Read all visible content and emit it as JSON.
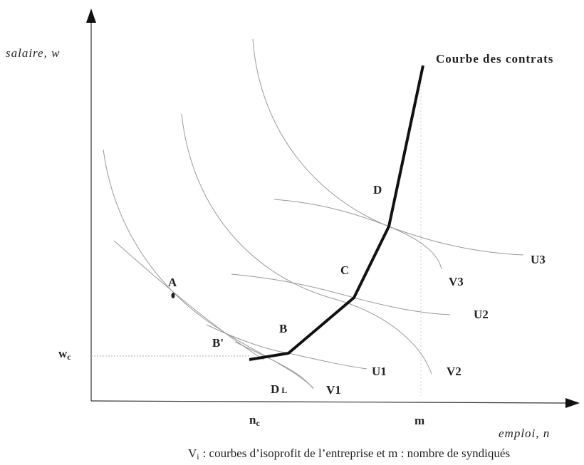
{
  "y_axis_label": "salaire, w",
  "x_axis_label": "emploi, n",
  "contract_curve_label": "Courbe des contrats",
  "points": {
    "D": "D",
    "C": "C",
    "B": "B",
    "A": "A",
    "B_prime": "B'",
    "D_L": {
      "main": "D",
      "sub": "L"
    }
  },
  "wage": {
    "main": "w",
    "sub": "c"
  },
  "employment": {
    "main": "n",
    "sub": "c"
  },
  "members": "m",
  "indifference_curves": [
    "U1",
    "U2",
    "U3"
  ],
  "isoprofit_curves": [
    "V1",
    "V2",
    "V3"
  ],
  "caption": {
    "symbol": "V",
    "sub": "i",
    "text": ": courbes d’isoprofit de l’entreprise et m : nombre de syndiqués"
  }
}
